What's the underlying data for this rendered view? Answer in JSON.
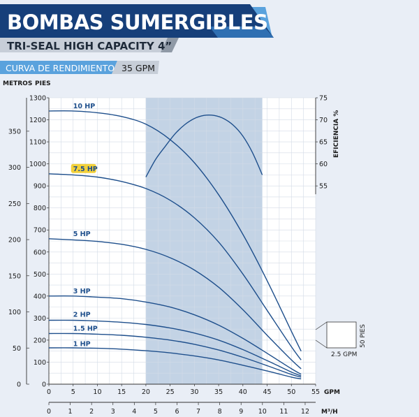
{
  "header": {
    "title": "BOMBAS SUMERGIBLES",
    "subtitle": "TRI-SEAL HIGH CAPACITY 4”",
    "section_label": "CURVA DE RENDIMIENTO",
    "section_value": "35 GPM"
  },
  "colors": {
    "navy": "#163f7a",
    "blue": "#2f6fb2",
    "light_blue": "#5aa2dd",
    "gray_bar": "#bcc4cf",
    "gray_dark": "#8f99a6",
    "curve": "#1e4f8c",
    "grid": "#d3dbe6",
    "band": "#b8cbe0",
    "highlight": "#f3d13a",
    "text": "#1a1a1a"
  },
  "chart_data": {
    "type": "line",
    "axes_titles": {
      "left_outer": "METROS",
      "left_inner": "PIES",
      "right": "EFICIENCIA %",
      "bottom_primary": "GPM",
      "bottom_secondary": "M³/H"
    },
    "x_gpm": {
      "range": [
        0,
        55
      ],
      "ticks": [
        0,
        5,
        10,
        15,
        20,
        25,
        30,
        35,
        40,
        45,
        50,
        55
      ]
    },
    "x_m3h": {
      "ticks": [
        0,
        1,
        2,
        3,
        4,
        5,
        6,
        7,
        8,
        9,
        10,
        11,
        12
      ]
    },
    "y_feet": {
      "range": [
        0,
        1300
      ],
      "ticks": [
        0,
        100,
        200,
        300,
        400,
        500,
        600,
        700,
        800,
        900,
        1000,
        1100,
        1200,
        1300
      ]
    },
    "y_meters": {
      "ticks": [
        0,
        50,
        100,
        150,
        200,
        250,
        300,
        350
      ]
    },
    "y_efficiency": {
      "ticks": [
        55,
        60,
        65,
        70,
        75
      ]
    },
    "recommended_range_gpm": [
      20,
      44
    ],
    "series": [
      {
        "name": "10 HP",
        "highlight": false,
        "label_at": [
          5,
          1240
        ],
        "points": [
          [
            0,
            1240
          ],
          [
            5,
            1240
          ],
          [
            10,
            1232
          ],
          [
            15,
            1215
          ],
          [
            20,
            1180
          ],
          [
            25,
            1110
          ],
          [
            30,
            1005
          ],
          [
            35,
            860
          ],
          [
            40,
            680
          ],
          [
            45,
            470
          ],
          [
            50,
            240
          ],
          [
            52,
            150
          ]
        ]
      },
      {
        "name": "7.5 HP",
        "highlight": true,
        "label_at": [
          5,
          955
        ],
        "points": [
          [
            0,
            955
          ],
          [
            5,
            950
          ],
          [
            10,
            940
          ],
          [
            15,
            920
          ],
          [
            20,
            888
          ],
          [
            25,
            835
          ],
          [
            30,
            755
          ],
          [
            35,
            645
          ],
          [
            40,
            500
          ],
          [
            45,
            335
          ],
          [
            50,
            170
          ],
          [
            52,
            110
          ]
        ]
      },
      {
        "name": "5 HP",
        "highlight": false,
        "label_at": [
          5,
          660
        ],
        "points": [
          [
            0,
            660
          ],
          [
            5,
            655
          ],
          [
            10,
            648
          ],
          [
            15,
            635
          ],
          [
            20,
            612
          ],
          [
            25,
            574
          ],
          [
            30,
            518
          ],
          [
            35,
            440
          ],
          [
            40,
            338
          ],
          [
            45,
            222
          ],
          [
            50,
            110
          ],
          [
            52,
            70
          ]
        ]
      },
      {
        "name": "3 HP",
        "highlight": false,
        "label_at": [
          5,
          400
        ],
        "points": [
          [
            0,
            400
          ],
          [
            5,
            400
          ],
          [
            10,
            395
          ],
          [
            15,
            388
          ],
          [
            20,
            373
          ],
          [
            25,
            350
          ],
          [
            30,
            315
          ],
          [
            35,
            268
          ],
          [
            40,
            208
          ],
          [
            45,
            140
          ],
          [
            50,
            70
          ],
          [
            52,
            45
          ]
        ]
      },
      {
        "name": "2 HP",
        "highlight": false,
        "label_at": [
          5,
          293
        ],
        "points": [
          [
            0,
            290
          ],
          [
            5,
            290
          ],
          [
            10,
            287
          ],
          [
            15,
            281
          ],
          [
            20,
            271
          ],
          [
            25,
            255
          ],
          [
            30,
            232
          ],
          [
            35,
            200
          ],
          [
            40,
            157
          ],
          [
            45,
            107
          ],
          [
            50,
            55
          ],
          [
            52,
            38
          ]
        ]
      },
      {
        "name": "1.5 HP",
        "highlight": false,
        "label_at": [
          5,
          230
        ],
        "points": [
          [
            0,
            230
          ],
          [
            5,
            230
          ],
          [
            10,
            227
          ],
          [
            15,
            222
          ],
          [
            20,
            213
          ],
          [
            25,
            200
          ],
          [
            30,
            181
          ],
          [
            35,
            155
          ],
          [
            40,
            122
          ],
          [
            45,
            84
          ],
          [
            50,
            44
          ],
          [
            52,
            32
          ]
        ]
      },
      {
        "name": "1 HP",
        "highlight": false,
        "label_at": [
          5,
          160
        ],
        "points": [
          [
            0,
            165
          ],
          [
            5,
            165
          ],
          [
            10,
            163
          ],
          [
            15,
            159
          ],
          [
            20,
            152
          ],
          [
            25,
            142
          ],
          [
            30,
            128
          ],
          [
            35,
            110
          ],
          [
            40,
            86
          ],
          [
            45,
            60
          ],
          [
            50,
            32
          ],
          [
            52,
            24
          ]
        ]
      }
    ],
    "efficiency_curve": {
      "points": [
        [
          20,
          57
        ],
        [
          22,
          61
        ],
        [
          24,
          64
        ],
        [
          26,
          66.8
        ],
        [
          28,
          68.9
        ],
        [
          30,
          70.3
        ],
        [
          32,
          71
        ],
        [
          34,
          71
        ],
        [
          36,
          70.3
        ],
        [
          38,
          68.8
        ],
        [
          40,
          66.3
        ],
        [
          42,
          62.5
        ],
        [
          44,
          57.5
        ]
      ]
    },
    "scale_box": {
      "height_label": "50 PIES",
      "width_label": "2.5 GPM"
    }
  }
}
